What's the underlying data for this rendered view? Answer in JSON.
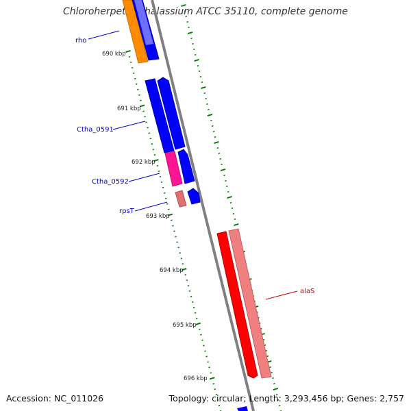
{
  "title": "Chloroherpeton thalassium ATCC 35110, complete genome",
  "footer": {
    "accession": "Accession: NC_011026",
    "summary": "Topology: circular; Length: 3,293,456 bp; Genes: 2,757"
  },
  "ruler": [
    "690 kbp",
    "691 kbp",
    "692 kbp",
    "693 kbp",
    "694 kbp",
    "695 kbp",
    "696 kbp"
  ],
  "gene_labels": [
    {
      "text": "rho",
      "color": "#0000cc"
    },
    {
      "text": "Ctha_0591",
      "color": "#0000cc"
    },
    {
      "text": "Ctha_0592",
      "color": "#0000cc"
    },
    {
      "text": "rpsT",
      "color": "#0000cc"
    },
    {
      "text": "alaS",
      "color": "#cc0000"
    }
  ],
  "colors": {
    "backbone": "#808080",
    "tick": "#008000",
    "forward_gene": "#0000ff",
    "orange_gene": "#ff8c00",
    "magenta_gene": "#ff1493",
    "red_gene": "#ff0000",
    "pink_gene": "#f08080"
  }
}
